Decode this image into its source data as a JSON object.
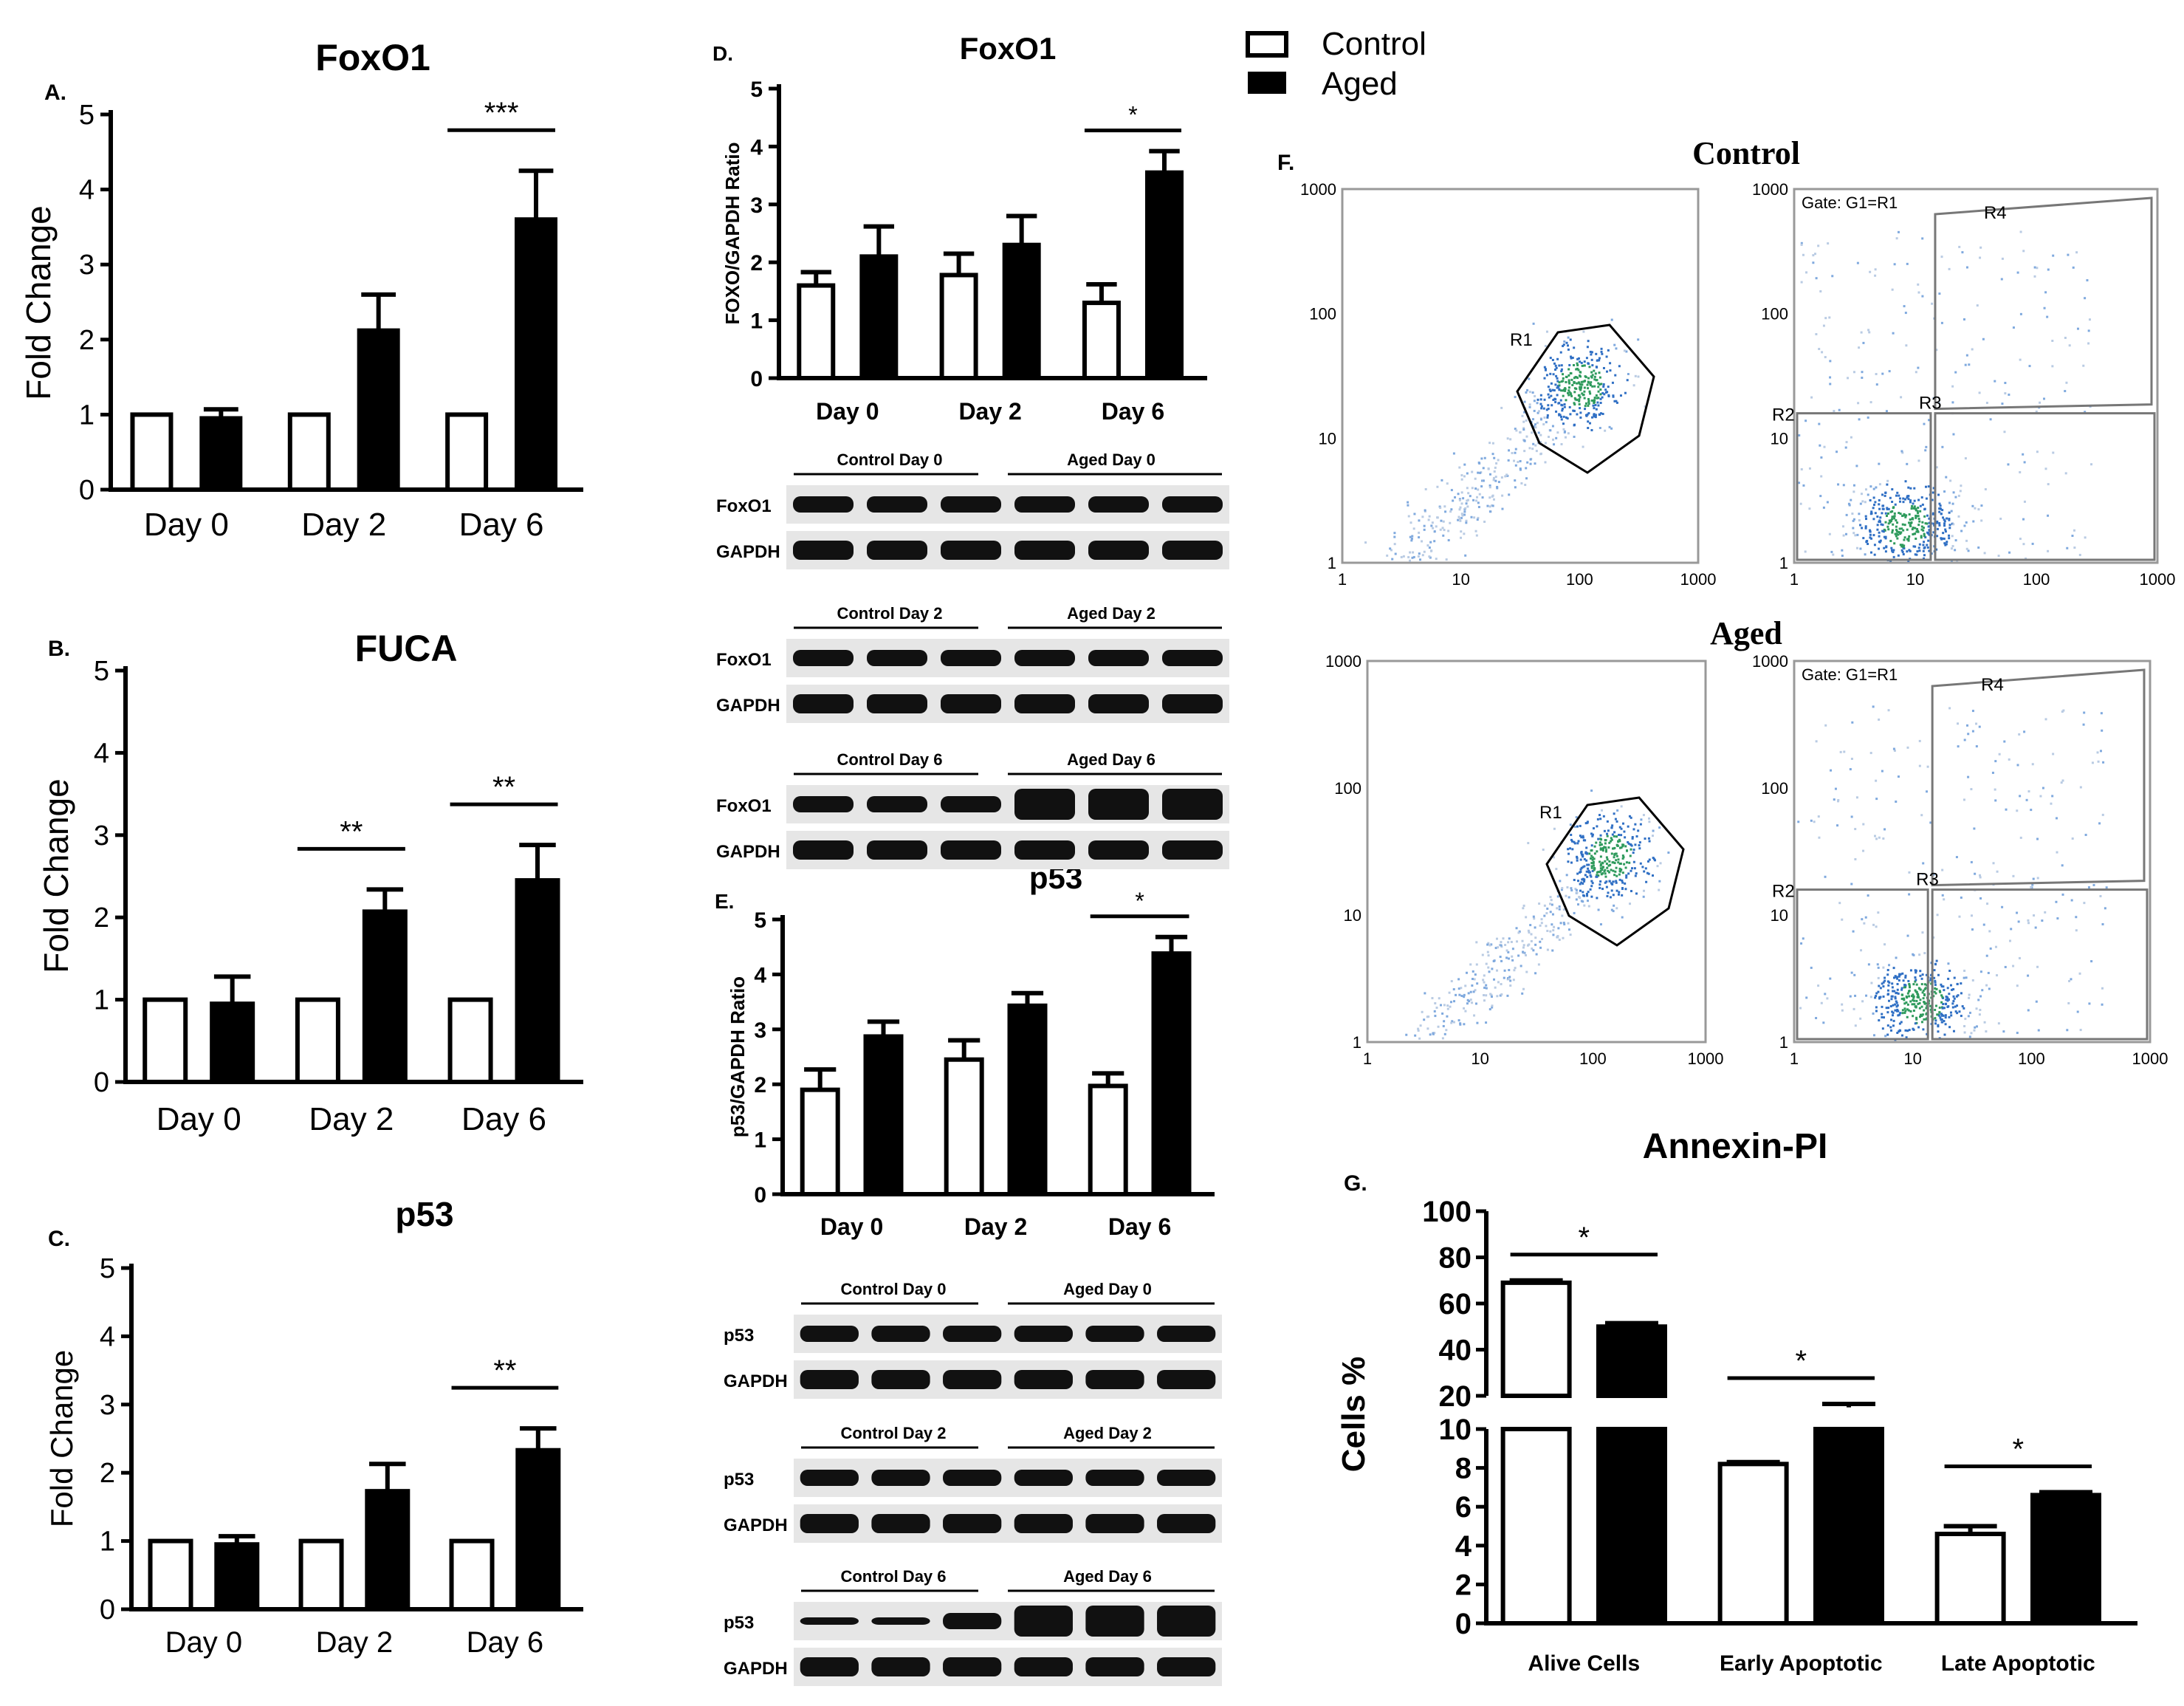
{
  "legend": {
    "control": "Control",
    "aged": "Aged"
  },
  "chart_data": [
    {
      "id": "A",
      "panel": "A.",
      "type": "bar",
      "title": "FoxO1",
      "ylabel": "Fold Change",
      "ylim": [
        0,
        5
      ],
      "yticks": [
        "0",
        "1",
        "2",
        "3",
        "4",
        "5"
      ],
      "categories": [
        "Day 0",
        "Day 2",
        "Day 6"
      ],
      "series": [
        {
          "name": "Control",
          "values": [
            1,
            1,
            1
          ],
          "errors": [
            0,
            0,
            0
          ]
        },
        {
          "name": "Aged",
          "values": [
            0.95,
            2.12,
            3.6
          ],
          "errors": [
            0.12,
            0.48,
            0.65
          ]
        }
      ],
      "significance": [
        {
          "category": "Day 6",
          "label": "***"
        }
      ]
    },
    {
      "id": "B",
      "panel": "B.",
      "type": "bar",
      "title": "FUCA",
      "ylabel": "Fold Change",
      "ylim": [
        0,
        5
      ],
      "yticks": [
        "0",
        "1",
        "2",
        "3",
        "4",
        "5"
      ],
      "categories": [
        "Day 0",
        "Day 2",
        "Day 6"
      ],
      "series": [
        {
          "name": "Control",
          "values": [
            1,
            1,
            1
          ],
          "errors": [
            0,
            0,
            0
          ]
        },
        {
          "name": "Aged",
          "values": [
            0.95,
            2.07,
            2.45
          ],
          "errors": [
            0.33,
            0.27,
            0.43
          ]
        }
      ],
      "significance": [
        {
          "category": "Day 2",
          "label": "**"
        },
        {
          "category": "Day 6",
          "label": "**"
        }
      ]
    },
    {
      "id": "C",
      "panel": "C.",
      "type": "bar",
      "title": "p53",
      "ylabel": "Fold Change",
      "ylim": [
        0,
        5
      ],
      "yticks": [
        "0",
        "1",
        "2",
        "3",
        "4",
        "5"
      ],
      "categories": [
        "Day 0",
        "Day 2",
        "Day 6"
      ],
      "series": [
        {
          "name": "Control",
          "values": [
            1,
            1,
            1
          ],
          "errors": [
            0,
            0,
            0
          ]
        },
        {
          "name": "Aged",
          "values": [
            0.95,
            1.73,
            2.33
          ],
          "errors": [
            0.12,
            0.4,
            0.32
          ]
        }
      ],
      "significance": [
        {
          "category": "Day 6",
          "label": "**"
        }
      ]
    },
    {
      "id": "D",
      "panel": "D.",
      "type": "bar",
      "title": "FoxO1",
      "ylabel": "FOXO/GAPDH Ratio",
      "ylim": [
        0,
        5
      ],
      "yticks": [
        "0",
        "1",
        "2",
        "3",
        "4",
        "5"
      ],
      "categories": [
        "Day 0",
        "Day 2",
        "Day 6"
      ],
      "series": [
        {
          "name": "Control",
          "values": [
            1.6,
            1.78,
            1.3
          ],
          "errors": [
            0.23,
            0.37,
            0.32
          ]
        },
        {
          "name": "Aged",
          "values": [
            2.1,
            2.3,
            3.55
          ],
          "errors": [
            0.52,
            0.5,
            0.37
          ]
        }
      ],
      "significance": [
        {
          "category": "Day 6",
          "label": "*"
        }
      ]
    },
    {
      "id": "E",
      "panel": "E.",
      "type": "bar",
      "title": "p53",
      "ylabel": "p53/GAPDH Ratio",
      "ylim": [
        0,
        5
      ],
      "yticks": [
        "0",
        "1",
        "2",
        "3",
        "4",
        "5"
      ],
      "categories": [
        "Day 0",
        "Day 2",
        "Day 6"
      ],
      "series": [
        {
          "name": "Control",
          "values": [
            1.9,
            2.45,
            1.97
          ],
          "errors": [
            0.37,
            0.35,
            0.23
          ]
        },
        {
          "name": "Aged",
          "values": [
            2.87,
            3.43,
            4.38
          ],
          "errors": [
            0.27,
            0.23,
            0.3
          ]
        }
      ],
      "significance": [
        {
          "category": "Day 6",
          "label": "*"
        }
      ]
    },
    {
      "id": "G",
      "panel": "G.",
      "type": "bar",
      "title": "Annexin-PI",
      "ylabel": "Cells %",
      "axis_break": [
        10,
        20
      ],
      "yticks_upper": [
        "20",
        "40",
        "60",
        "80",
        "100"
      ],
      "yticks_lower": [
        "0",
        "2",
        "4",
        "6",
        "8",
        "10"
      ],
      "categories": [
        "Alive Cells",
        "Early Apoptotic",
        "Late Apoptotic"
      ],
      "series": [
        {
          "name": "Control",
          "values": [
            69,
            8.2,
            4.6
          ],
          "errors": [
            1,
            0.1,
            0.4
          ]
        },
        {
          "name": "Aged",
          "values": [
            50,
            15,
            6.6
          ],
          "errors": [
            1.5,
            1.5,
            0.15
          ]
        }
      ],
      "significance": [
        {
          "category": "Alive Cells",
          "label": "*"
        },
        {
          "category": "Early Apoptotic",
          "label": "*"
        },
        {
          "category": "Late Apoptotic",
          "label": "*"
        }
      ]
    }
  ],
  "blots": [
    {
      "id": "D1",
      "control_label": "Control  Day 0",
      "aged_label": "Aged  Day 0",
      "rows": [
        "FoxO1",
        "GAPDH"
      ]
    },
    {
      "id": "D2",
      "control_label": "Control  Day 2",
      "aged_label": "Aged  Day 2",
      "rows": [
        "FoxO1",
        "GAPDH"
      ]
    },
    {
      "id": "D3",
      "control_label": "Control  Day 6",
      "aged_label": "Aged  Day 6",
      "rows": [
        "FoxO1",
        "GAPDH"
      ]
    },
    {
      "id": "E1",
      "control_label": "Control  Day 0",
      "aged_label": "Aged  Day 0",
      "rows": [
        "p53",
        "GAPDH"
      ]
    },
    {
      "id": "E2",
      "control_label": "Control  Day 2",
      "aged_label": "Aged  Day 2",
      "rows": [
        "p53",
        "GAPDH"
      ]
    },
    {
      "id": "E3",
      "control_label": "Control  Day 6",
      "aged_label": "Aged  Day 6",
      "rows": [
        "p53",
        "GAPDH"
      ]
    }
  ],
  "flow": {
    "panel": "F.",
    "control_title": "Control",
    "aged_title": "Aged",
    "log_ticks": [
      "1",
      "10",
      "100",
      "1000"
    ],
    "gate_text": "Gate: G1=R1",
    "regions": [
      "R1",
      "R2",
      "R3",
      "R4"
    ]
  }
}
